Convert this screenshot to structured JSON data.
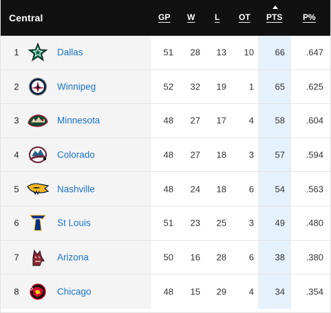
{
  "header": {
    "division": "Central",
    "columns": {
      "gp": "GP",
      "w": "W",
      "l": "L",
      "ot": "OT",
      "pts": "PTS",
      "pct": "P%"
    }
  },
  "colors": {
    "header_bg": "#111111",
    "team_link": "#1a73c9",
    "pts_highlight": "#e6f2fb",
    "left_cells_bg": "#f4f4f4"
  },
  "teams": [
    {
      "rank": "1",
      "name": "Dallas",
      "icon": "dallas-stars-logo-icon",
      "gp": "51",
      "w": "28",
      "l": "13",
      "ot": "10",
      "pts": "66",
      "pct": ".647"
    },
    {
      "rank": "2",
      "name": "Winnipeg",
      "icon": "winnipeg-jets-logo-icon",
      "gp": "52",
      "w": "32",
      "l": "19",
      "ot": "1",
      "pts": "65",
      "pct": ".625"
    },
    {
      "rank": "3",
      "name": "Minnesota",
      "icon": "minnesota-wild-logo-icon",
      "gp": "48",
      "w": "27",
      "l": "17",
      "ot": "4",
      "pts": "58",
      "pct": ".604"
    },
    {
      "rank": "4",
      "name": "Colorado",
      "icon": "colorado-avalanche-logo-icon",
      "gp": "48",
      "w": "27",
      "l": "18",
      "ot": "3",
      "pts": "57",
      "pct": ".594"
    },
    {
      "rank": "5",
      "name": "Nashville",
      "icon": "nashville-predators-logo-icon",
      "gp": "48",
      "w": "24",
      "l": "18",
      "ot": "6",
      "pts": "54",
      "pct": ".563"
    },
    {
      "rank": "6",
      "name": "St Louis",
      "icon": "st-louis-blues-logo-icon",
      "gp": "51",
      "w": "23",
      "l": "25",
      "ot": "3",
      "pts": "49",
      "pct": ".480"
    },
    {
      "rank": "7",
      "name": "Arizona",
      "icon": "arizona-coyotes-logo-icon",
      "gp": "50",
      "w": "16",
      "l": "28",
      "ot": "6",
      "pts": "38",
      "pct": ".380"
    },
    {
      "rank": "8",
      "name": "Chicago",
      "icon": "chicago-blackhawks-logo-icon",
      "gp": "48",
      "w": "15",
      "l": "29",
      "ot": "4",
      "pts": "34",
      "pct": ".354"
    }
  ]
}
